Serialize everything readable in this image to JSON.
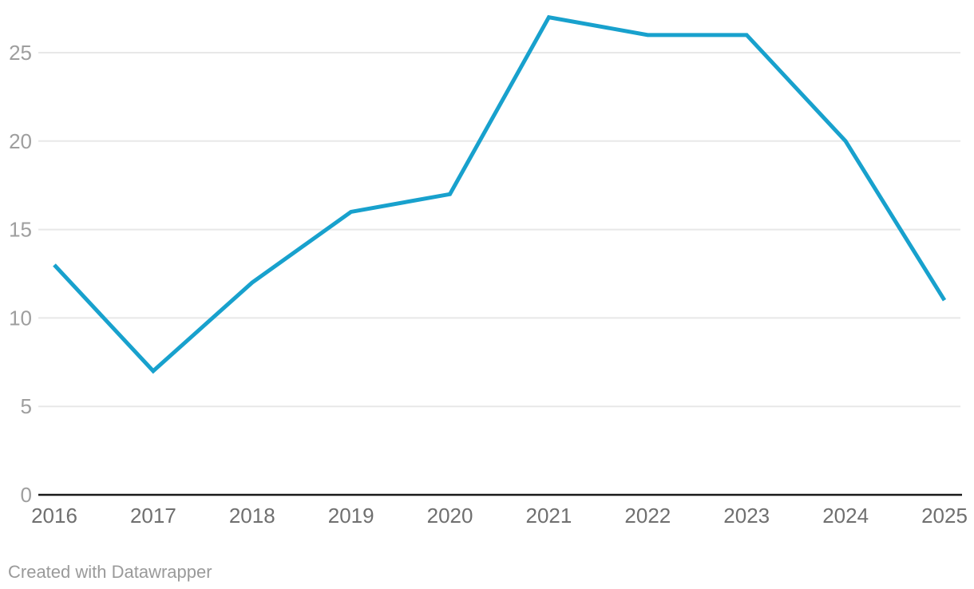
{
  "chart_data": {
    "type": "line",
    "x": [
      2016,
      2017,
      2018,
      2019,
      2020,
      2021,
      2022,
      2023,
      2024,
      2025
    ],
    "values": [
      13,
      7,
      12,
      16,
      17,
      27,
      26,
      26,
      20,
      11
    ],
    "title": "",
    "xlabel": "",
    "ylabel": "",
    "ylim": [
      0,
      27.5
    ],
    "yticks": [
      0,
      5,
      10,
      15,
      20,
      25
    ],
    "grid": true,
    "legend": "none",
    "line_color": "#18a1cd",
    "line_width": 5
  },
  "colors": {
    "background": "#ffffff",
    "grid": "#e8e8e8",
    "axis": "#1a1a1a",
    "ytick_label": "#9e9e9e",
    "xtick_label": "#6f6f6f",
    "credit": "#9a9a9a"
  },
  "footer": {
    "credit": "Created with Datawrapper"
  }
}
